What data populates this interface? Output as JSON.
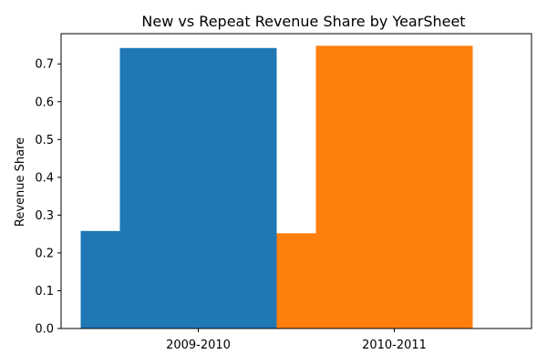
{
  "chart_data": {
    "type": "bar",
    "title": "New vs Repeat Revenue Share by YearSheet",
    "xlabel": "",
    "ylabel": "Revenue Share",
    "categories": [
      "2009-2010",
      "2010-2011"
    ],
    "ylim": [
      0,
      0.78
    ],
    "yticks": [
      "0.0",
      "0.1",
      "0.2",
      "0.3",
      "0.4",
      "0.5",
      "0.6",
      "0.7"
    ],
    "grid": false,
    "bars": [
      {
        "category": "2009-2010",
        "x_start": -0.4,
        "x_end": 0.0,
        "value": 0.258,
        "color": "#1f77b4"
      },
      {
        "category": "2009-2010",
        "x_start": -0.2,
        "x_end": 0.6,
        "value": 0.742,
        "color": "#1f77b4"
      },
      {
        "category": "2010-2011",
        "x_start": 0.6,
        "x_end": 1.0,
        "value": 0.252,
        "color": "#ff7f0e"
      },
      {
        "category": "2010-2011",
        "x_start": 0.8,
        "x_end": 1.6,
        "value": 0.748,
        "color": "#ff7f0e"
      }
    ]
  }
}
